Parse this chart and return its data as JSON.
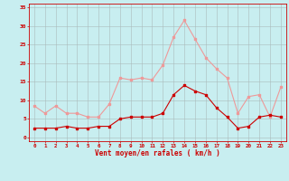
{
  "hours": [
    0,
    1,
    2,
    3,
    4,
    5,
    6,
    7,
    8,
    9,
    10,
    11,
    12,
    13,
    14,
    15,
    16,
    17,
    18,
    19,
    20,
    21,
    22,
    23
  ],
  "wind_mean": [
    2.5,
    2.5,
    2.5,
    3.0,
    2.5,
    2.5,
    3.0,
    3.0,
    5.0,
    5.5,
    5.5,
    5.5,
    6.5,
    11.5,
    14.0,
    12.5,
    11.5,
    8.0,
    5.5,
    2.5,
    3.0,
    5.5,
    6.0,
    5.5
  ],
  "wind_gust": [
    8.5,
    6.5,
    8.5,
    6.5,
    6.5,
    5.5,
    5.5,
    9.0,
    16.0,
    15.5,
    16.0,
    15.5,
    19.5,
    27.0,
    31.5,
    26.5,
    21.5,
    18.5,
    16.0,
    6.5,
    11.0,
    11.5,
    5.5,
    13.5
  ],
  "xlabel": "Vent moyen/en rafales ( km/h )",
  "ylim": [
    -1,
    36
  ],
  "yticks": [
    0,
    5,
    10,
    15,
    20,
    25,
    30,
    35
  ],
  "bg_color": "#c8eef0",
  "grid_color": "#aabbbb",
  "mean_color": "#cc0000",
  "gust_color": "#ee9999",
  "xlabel_color": "#cc0000",
  "tick_color": "#cc0000",
  "axis_color": "#cc0000"
}
